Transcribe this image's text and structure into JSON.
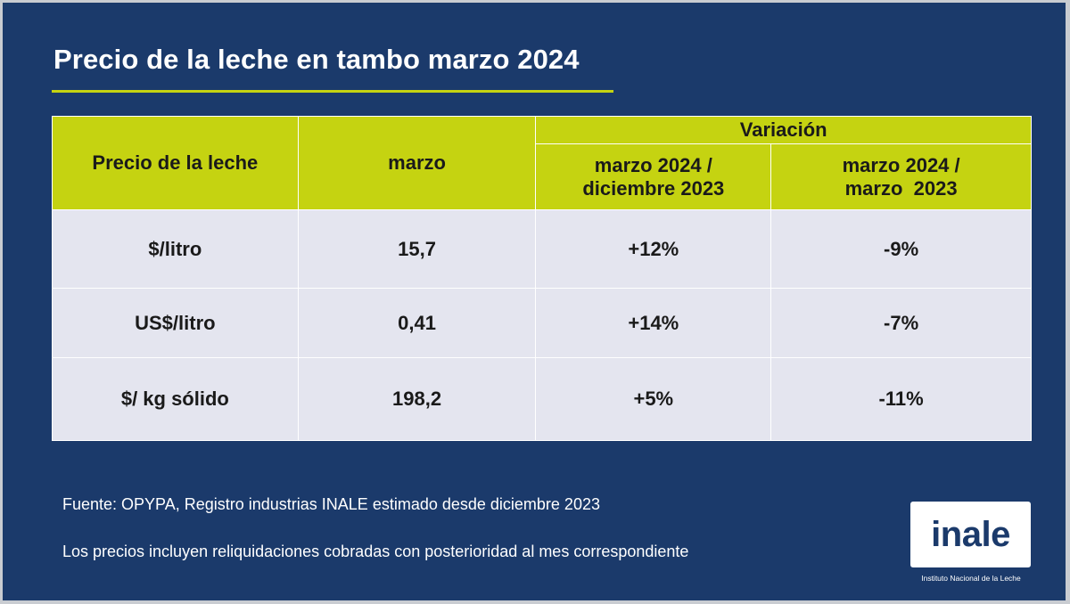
{
  "title": "Precio de la leche en tambo marzo 2024",
  "colors": {
    "background": "#1b3a6b",
    "accent": "#c5d311",
    "row_fill": "#e4e5ef"
  },
  "table": {
    "header": {
      "col1": "Precio de la leche",
      "col2": "marzo",
      "group": "Variación",
      "col3": [
        "marzo 2024 /",
        "diciembre 2023"
      ],
      "col4": [
        "marzo 2024 /",
        "marzo  2023"
      ]
    },
    "rows": [
      {
        "unit": "$/litro",
        "marzo": "15,7",
        "var_dic": "+12%",
        "var_mar": "-9%"
      },
      {
        "unit": "US$/litro",
        "marzo": "0,41",
        "var_dic": "+14%",
        "var_mar": "-7%"
      },
      {
        "unit": "$/ kg sólido",
        "marzo": "198,2",
        "var_dic": "+5%",
        "var_mar": "-11%"
      }
    ]
  },
  "notes": {
    "source": "Fuente: OPYPA, Registro industrias INALE estimado desde diciembre 2023",
    "disclaimer": "Los precios incluyen reliquidaciones cobradas con posterioridad al mes correspondiente"
  },
  "logo": {
    "wordmark": "inale",
    "subtitle": "Instituto Nacional de la Leche"
  }
}
